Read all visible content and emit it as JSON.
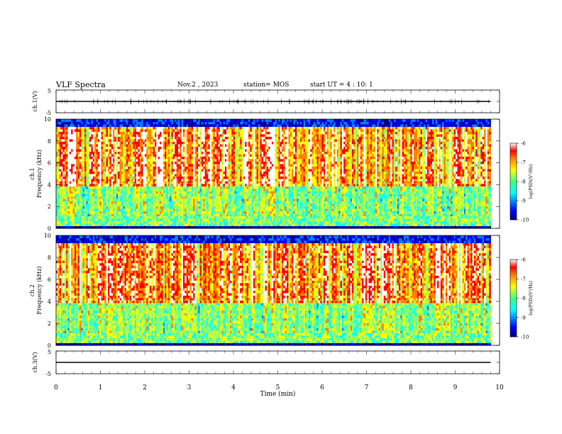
{
  "header": {
    "title": "VLF Spectra",
    "date": "Nov.2 , 2023",
    "station": "station= MOS",
    "start": "start UT = 4 : 10: 1"
  },
  "chart_data": [
    {
      "type": "line",
      "panel": "ch1-waveform",
      "ylabel": "ch.1(V)",
      "ylim": [
        -5,
        5
      ],
      "yticks": [
        "5",
        "-5"
      ],
      "xlim": [
        0,
        10
      ],
      "series": [
        {
          "x": [
            0,
            9.8
          ],
          "values": [
            0,
            0
          ]
        }
      ]
    },
    {
      "type": "heatmap",
      "panel": "ch1-spectrogram",
      "ylabel_channel": "ch.1",
      "ylabel": "Frequency (kHz)",
      "ylim": [
        0,
        10
      ],
      "yticks": [
        "0",
        "2",
        "4",
        "6",
        "8",
        "10"
      ],
      "xlim": [
        0,
        10
      ],
      "data_xmax": 9.8,
      "colorbar": {
        "label": "log(PSD)(V²/Hz)",
        "range": [
          -10,
          -6
        ],
        "ticks": [
          "-6",
          "-7",
          "-8",
          "-9",
          "-10"
        ]
      }
    },
    {
      "type": "heatmap",
      "panel": "ch2-spectrogram",
      "ylabel_channel": "ch.2",
      "ylabel": "Frequency (kHz)",
      "ylim": [
        0,
        10
      ],
      "yticks": [
        "0",
        "2",
        "4",
        "6",
        "8",
        "10"
      ],
      "xlim": [
        0,
        10
      ],
      "data_xmax": 9.8,
      "colorbar": {
        "label": "log(PSD)(V²/Hz)",
        "range": [
          -10,
          -6
        ],
        "ticks": [
          "-6",
          "-7",
          "-8",
          "-9",
          "-10"
        ]
      }
    },
    {
      "type": "line",
      "panel": "ch3-waveform",
      "ylabel": "ch.3(V)",
      "ylim": [
        -5,
        5
      ],
      "yticks": [
        "5",
        "-5"
      ],
      "xlim": [
        0,
        10
      ],
      "series": [
        {
          "x": [
            0,
            9.8
          ],
          "values": [
            0,
            0
          ]
        }
      ]
    }
  ],
  "xaxis": {
    "label": "Time (min)",
    "ticks": [
      "0",
      "1",
      "2",
      "3",
      "4",
      "5",
      "6",
      "7",
      "8",
      "9",
      "10"
    ]
  },
  "colors": {
    "jet": [
      "#00007f",
      "#0000ff",
      "#0080ff",
      "#00ffff",
      "#80ff80",
      "#ffff00",
      "#ff8000",
      "#ff0000",
      "#ffffff"
    ]
  }
}
